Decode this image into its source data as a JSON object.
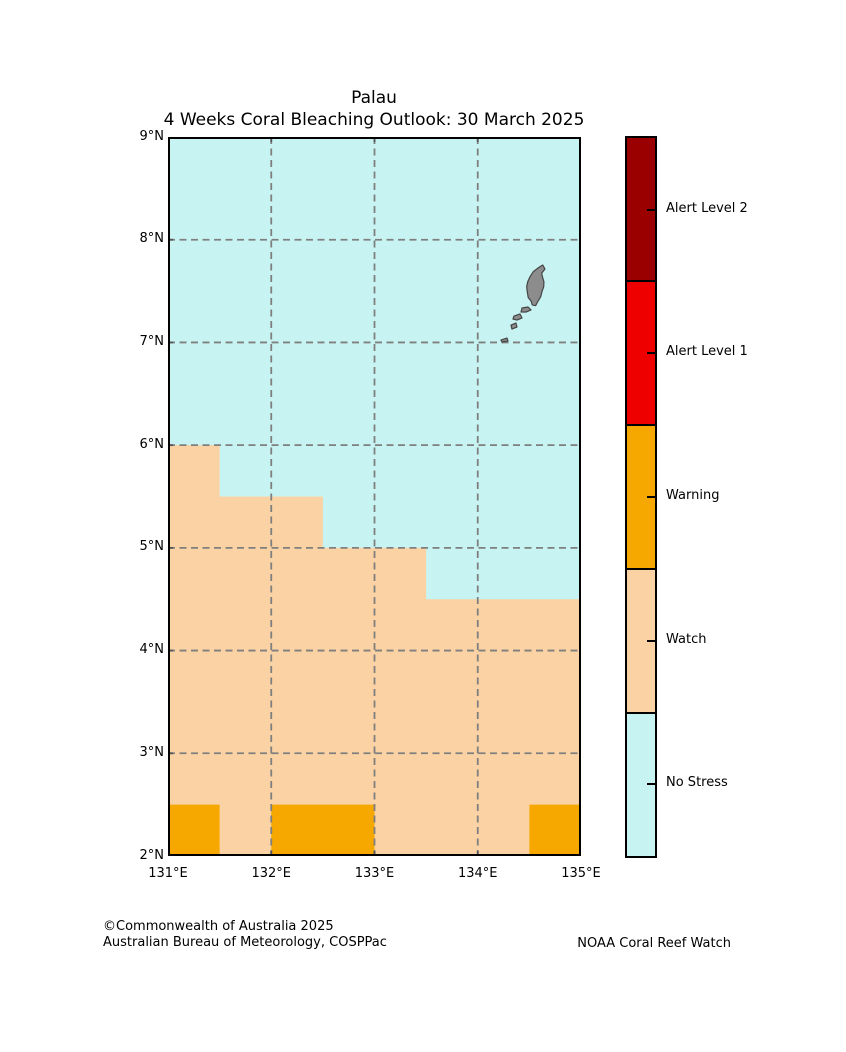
{
  "title": "Palau",
  "subtitle": "4 Weeks Coral Bleaching Outlook: 30 March 2025",
  "footer": {
    "left_line1": "©Commonwealth of Australia 2025",
    "left_line2": "Australian Bureau of Meteorology, COSPPac",
    "right": "NOAA Coral Reef Watch"
  },
  "colors": {
    "alert_level_2": "#9A0000",
    "alert_level_1": "#EE0000",
    "warning": "#F6A800",
    "watch": "#FBD2A3",
    "no_stress": "#C7F4F2",
    "island_fill": "#8C8C8C",
    "island_outline": "#454545",
    "grid": "#7F7F7F",
    "axis": "#000000"
  },
  "legend": {
    "items": [
      {
        "label": "Alert Level 2",
        "color_key": "alert_level_2"
      },
      {
        "label": "Alert Level 1",
        "color_key": "alert_level_1"
      },
      {
        "label": "Warning",
        "color_key": "warning"
      },
      {
        "label": "Watch",
        "color_key": "watch"
      },
      {
        "label": "No Stress",
        "color_key": "no_stress"
      }
    ]
  },
  "chart_data": {
    "type": "map",
    "region": "Palau",
    "lon_range": [
      131,
      135
    ],
    "lat_range": [
      2,
      9
    ],
    "x_tick_lons": [
      131,
      132,
      133,
      134,
      135
    ],
    "x_tick_labels": [
      "131°E",
      "132°E",
      "133°E",
      "134°E",
      "135°E"
    ],
    "y_tick_lats": [
      9,
      8,
      7,
      6,
      5,
      4,
      3,
      2
    ],
    "y_tick_labels": [
      "9°N",
      "8°N",
      "7°N",
      "6°N",
      "5°N",
      "4°N",
      "3°N",
      "2°N"
    ],
    "grid_lons": [
      132,
      133,
      134
    ],
    "grid_lats": [
      3,
      4,
      5,
      6,
      7,
      8
    ],
    "grid_on": true,
    "base_status": "No Stress",
    "watch_region_polygon": [
      [
        131,
        6
      ],
      [
        131.5,
        6
      ],
      [
        131.5,
        5.5
      ],
      [
        132.5,
        5.5
      ],
      [
        132.5,
        5
      ],
      [
        133.5,
        5
      ],
      [
        133.5,
        4.5
      ],
      [
        135,
        4.5
      ],
      [
        135,
        2
      ],
      [
        131,
        2
      ]
    ],
    "warning_cells": [
      {
        "lon_min": 131,
        "lon_max": 131.5,
        "lat_min": 2,
        "lat_max": 2.5
      },
      {
        "lon_min": 132,
        "lon_max": 133,
        "lat_min": 2,
        "lat_max": 2.5
      },
      {
        "lon_min": 134.5,
        "lon_max": 135,
        "lat_min": 2,
        "lat_max": 2.5
      }
    ],
    "islands": [
      [
        [
          134.629,
          7.754
        ],
        [
          134.651,
          7.715
        ],
        [
          134.619,
          7.673
        ],
        [
          134.629,
          7.63
        ],
        [
          134.641,
          7.591
        ],
        [
          134.639,
          7.543
        ],
        [
          134.622,
          7.494
        ],
        [
          134.61,
          7.445
        ],
        [
          134.581,
          7.397
        ],
        [
          134.561,
          7.358
        ],
        [
          134.528,
          7.365
        ],
        [
          134.516,
          7.404
        ],
        [
          134.489,
          7.436
        ],
        [
          134.48,
          7.488
        ],
        [
          134.474,
          7.543
        ],
        [
          134.484,
          7.591
        ],
        [
          134.506,
          7.64
        ],
        [
          134.538,
          7.689
        ],
        [
          134.581,
          7.722
        ],
        [
          134.613,
          7.744
        ]
      ],
      [
        [
          134.429,
          7.335
        ],
        [
          134.487,
          7.345
        ],
        [
          134.516,
          7.316
        ],
        [
          134.468,
          7.296
        ],
        [
          134.419,
          7.296
        ]
      ],
      [
        [
          134.351,
          7.257
        ],
        [
          134.409,
          7.277
        ],
        [
          134.429,
          7.238
        ],
        [
          134.38,
          7.218
        ],
        [
          134.341,
          7.228
        ]
      ],
      [
        [
          134.322,
          7.169
        ],
        [
          134.37,
          7.189
        ],
        [
          134.38,
          7.15
        ],
        [
          134.331,
          7.13
        ]
      ],
      [
        [
          134.225,
          7.023
        ],
        [
          134.283,
          7.043
        ],
        [
          134.293,
          7.013
        ],
        [
          134.235,
          7.004
        ]
      ]
    ]
  }
}
